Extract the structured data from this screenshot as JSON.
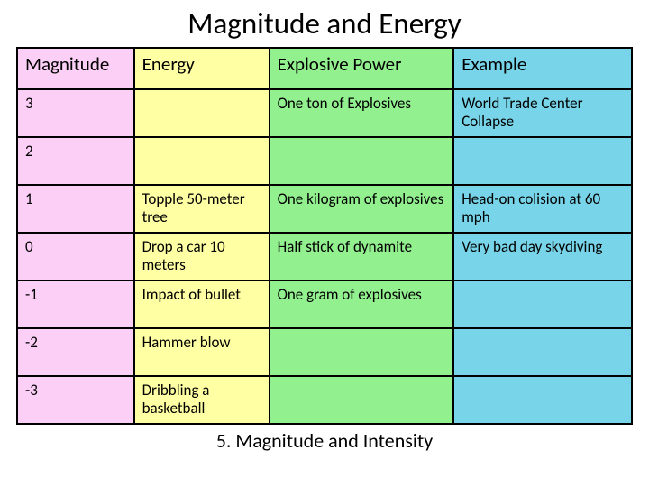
{
  "title": "Magnitude and Energy",
  "caption": "5. Magnitude and Intensity",
  "table": {
    "type": "table",
    "column_colors": [
      "#fccff6",
      "#ffffa3",
      "#92f08e",
      "#78d4e8"
    ],
    "border_color": "#000000",
    "background_color": "#ffffff",
    "header_fontsize": 21,
    "cell_fontsize": 17,
    "columns": [
      "Magnitude",
      "Energy",
      "Explosive Power",
      "Example"
    ],
    "column_widths_pct": [
      19,
      22,
      30,
      29
    ],
    "rows": [
      {
        "magnitude": "3",
        "energy": "",
        "explosive": "One ton of Explosives",
        "example": "World Trade Center Collapse"
      },
      {
        "magnitude": "2",
        "energy": "",
        "explosive": "",
        "example": ""
      },
      {
        "magnitude": "1",
        "energy": "Topple 50-meter tree",
        "explosive": "One kilogram of explosives",
        "example": "Head-on colision at 60 mph"
      },
      {
        "magnitude": "0",
        "energy": "Drop a car 10 meters",
        "explosive": "Half stick of dynamite",
        "example": "Very bad day skydiving"
      },
      {
        "magnitude": "-1",
        "energy": "Impact of bullet",
        "explosive": "One gram of explosives",
        "example": ""
      },
      {
        "magnitude": "-2",
        "energy": "Hammer blow",
        "explosive": "",
        "example": ""
      },
      {
        "magnitude": "-3",
        "energy": "Dribbling a basketball",
        "explosive": "",
        "example": ""
      }
    ]
  }
}
